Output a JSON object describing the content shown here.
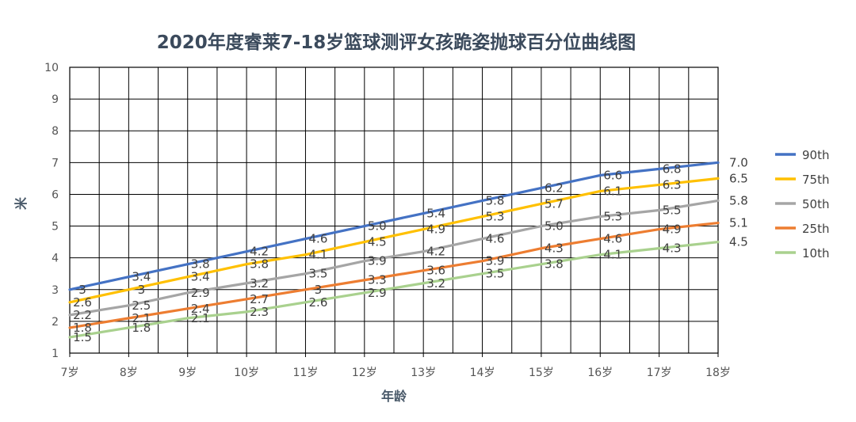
{
  "chart_data": {
    "type": "line",
    "title": "2020年度睿莱7-18岁篮球测评女孩跪姿抛球百分位曲线图",
    "xlabel": "年龄",
    "ylabel": "米",
    "categories": [
      "7岁",
      "8岁",
      "9岁",
      "10岁",
      "11岁",
      "12岁",
      "13岁",
      "14岁",
      "15岁",
      "16岁",
      "17岁",
      "18岁"
    ],
    "ylim": [
      1,
      10
    ],
    "yticks": [
      "1",
      "2",
      "3",
      "4",
      "5",
      "6",
      "7",
      "8",
      "9",
      "10"
    ],
    "grid": true,
    "legend_position": "right",
    "series": [
      {
        "name": "90th",
        "color": "#4472c4",
        "values": [
          3.0,
          3.4,
          3.8,
          4.2,
          4.6,
          5.0,
          5.4,
          5.8,
          6.2,
          6.6,
          6.8,
          7.0
        ],
        "labels": [
          "3",
          "3.4",
          "3.8",
          "4.2",
          "4.6",
          "5.0",
          "5.4",
          "5.8",
          "6.2",
          "6.6",
          "6.8",
          ""
        ],
        "end_label": "7.0"
      },
      {
        "name": "75th",
        "color": "#ffc000",
        "values": [
          2.6,
          3.0,
          3.4,
          3.8,
          4.1,
          4.5,
          4.9,
          5.3,
          5.7,
          6.1,
          6.3,
          6.5
        ],
        "labels": [
          "2.6",
          "3",
          "3.4",
          "3.8",
          "4.1",
          "4.5",
          "4.9",
          "5.3",
          "5.7",
          "6.1",
          "6.3",
          ""
        ],
        "end_label": "6.5"
      },
      {
        "name": "50th",
        "color": "#a5a5a5",
        "values": [
          2.2,
          2.5,
          2.9,
          3.2,
          3.5,
          3.9,
          4.2,
          4.6,
          5.0,
          5.3,
          5.5,
          5.8
        ],
        "labels": [
          "2.2",
          "2.5",
          "2.9",
          "3.2",
          "3.5",
          "3.9",
          "4.2",
          "4.6",
          "5.0",
          "5.3",
          "5.5",
          ""
        ],
        "end_label": "5.8"
      },
      {
        "name": "25th",
        "color": "#ed7d31",
        "values": [
          1.8,
          2.1,
          2.4,
          2.7,
          3.0,
          3.3,
          3.6,
          3.9,
          4.3,
          4.6,
          4.9,
          5.1
        ],
        "labels": [
          "1.8",
          "2.1",
          "2.4",
          "2.7",
          "3",
          "3.3",
          "3.6",
          "3.9",
          "4.3",
          "4.6",
          "4.9",
          ""
        ],
        "end_label": "5.1"
      },
      {
        "name": "10th",
        "color": "#a9d18e",
        "values": [
          1.5,
          1.8,
          2.1,
          2.3,
          2.6,
          2.9,
          3.2,
          3.5,
          3.8,
          4.1,
          4.3,
          4.5
        ],
        "labels": [
          "1.5",
          "1.8",
          "2.1",
          "2.3",
          "2.6",
          "2.9",
          "3.2",
          "3.5",
          "3.8",
          "4.1",
          "4.3",
          ""
        ],
        "end_label": "4.5"
      }
    ]
  }
}
